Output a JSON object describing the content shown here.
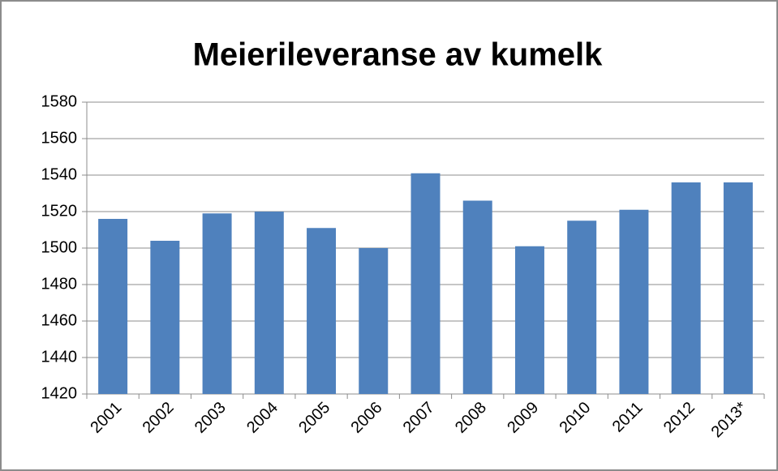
{
  "chart_data": {
    "type": "bar",
    "title": "Meierileveranse av kumelk",
    "categories": [
      "2001",
      "2002",
      "2003",
      "2004",
      "2005",
      "2006",
      "2007",
      "2008",
      "2009",
      "2010",
      "2011",
      "2012",
      "2013*"
    ],
    "values": [
      1516,
      1504,
      1519,
      1520,
      1511,
      1500,
      1541,
      1526,
      1501,
      1515,
      1521,
      1536,
      1536
    ],
    "color": "#4f81bd",
    "ylim": [
      1420,
      1580
    ],
    "yticks": [
      1420,
      1440,
      1460,
      1480,
      1500,
      1520,
      1540,
      1560,
      1580
    ],
    "grid": true
  }
}
